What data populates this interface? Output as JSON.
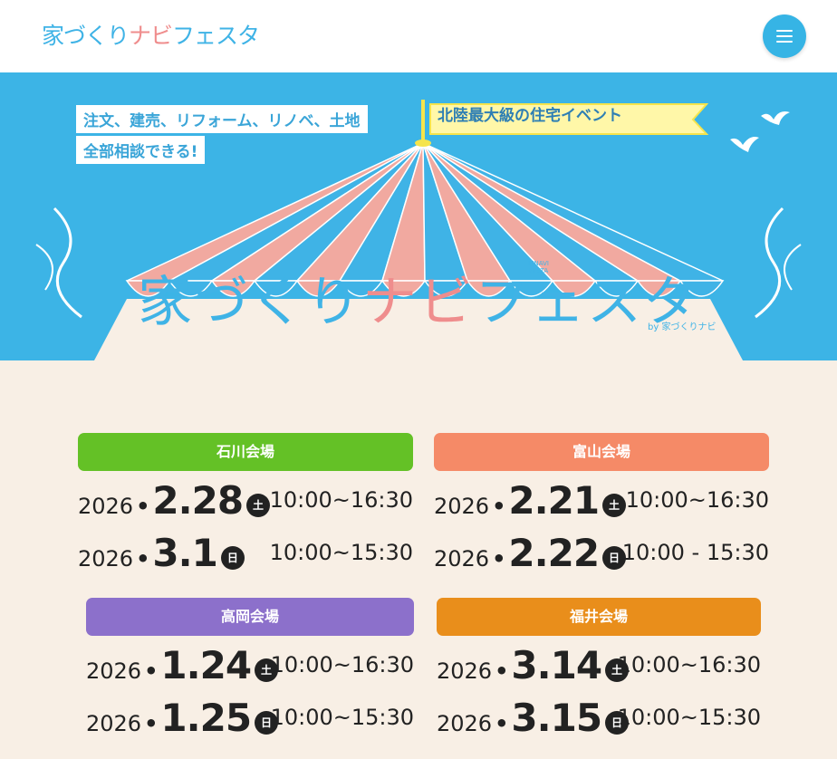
{
  "header": {
    "logo_a": "家づくり",
    "logo_b": "ナビ",
    "logo_c": "フェスタ",
    "menu_icon": "hamburger-icon"
  },
  "hero": {
    "tagline_1": "注文、建売、リフォーム、リノベ、土地",
    "tagline_2": "全部相談できる!",
    "event_label": "北陸最大級の住宅イベント",
    "title_a": "家づくり",
    "title_b": "ナビ",
    "title_c": "フェスタ",
    "title_en_1": "IENAVI",
    "title_en_2": "FESTA",
    "by_label": "by 家づくりナビ",
    "colors": {
      "sky": "#3cb4e6",
      "stripe_pink": "#f1a9a0",
      "stripe_blue": "#3fb3e6",
      "canvas": "#f8efe5"
    }
  },
  "venues": [
    {
      "name": "石川会場",
      "color": "#64c126",
      "dates": [
        {
          "year": "2026",
          "md": "2.28",
          "dow": "土",
          "time": "10:00~16:30"
        },
        {
          "year": "2026",
          "md": "3.1",
          "dow": "日",
          "time": "10:00~15:30"
        }
      ]
    },
    {
      "name": "富山会場",
      "color": "#f58a67",
      "dates": [
        {
          "year": "2026",
          "md": "2.21",
          "dow": "土",
          "time": "10:00~16:30"
        },
        {
          "year": "2026",
          "md": "2.22",
          "dow": "日",
          "time": "10:00 - 15:30"
        }
      ]
    },
    {
      "name": "高岡会場",
      "color": "#8c70cb",
      "dates": [
        {
          "year": "2026",
          "md": "1.24",
          "dow": "土",
          "time": "10:00~16:30"
        },
        {
          "year": "2026",
          "md": "1.25",
          "dow": "日",
          "time": "10:00~15:30"
        }
      ]
    },
    {
      "name": "福井会場",
      "color": "#e98e1b",
      "dates": [
        {
          "year": "2026",
          "md": "3.14",
          "dow": "土",
          "time": "10:00~16:30"
        },
        {
          "year": "2026",
          "md": "3.15",
          "dow": "日",
          "time": "10:00~15:30"
        }
      ]
    }
  ]
}
